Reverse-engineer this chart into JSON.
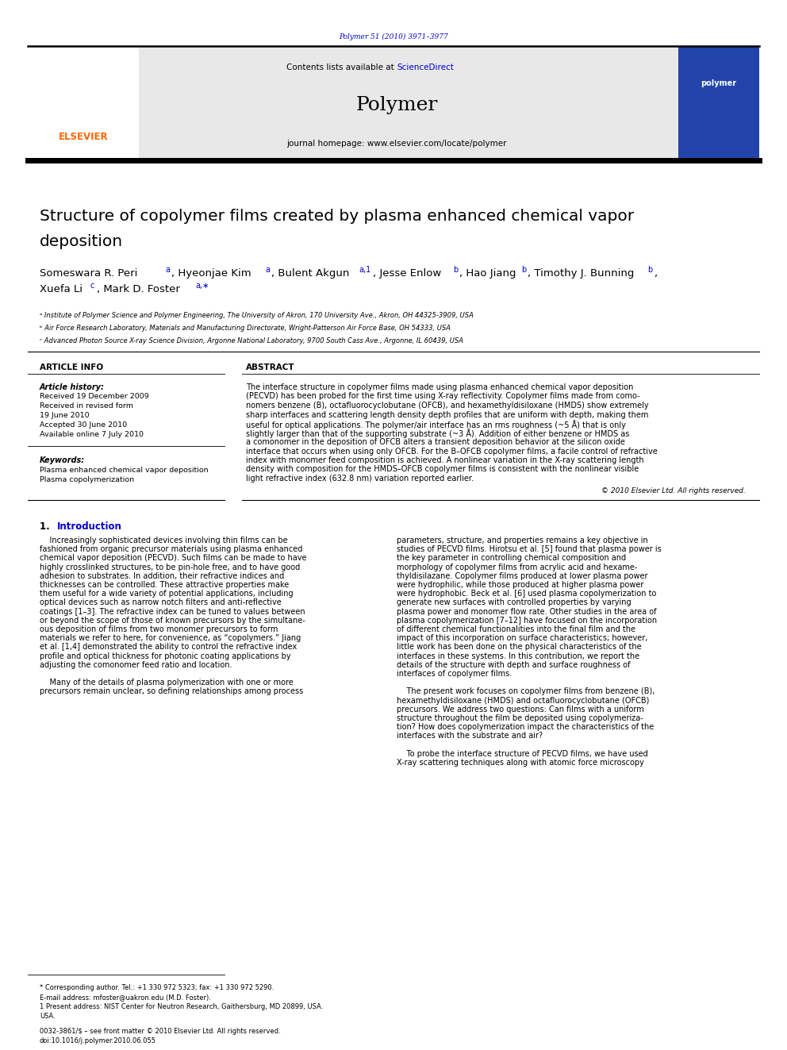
{
  "page_width": 9.92,
  "page_height": 13.23,
  "bg_color": "#ffffff",
  "top_citation": "Polymer 51 (2010) 3971–3977",
  "citation_color": "#0000cc",
  "header_bg": "#e8e8e8",
  "header_text1": "Contents lists available at ",
  "header_sciencedirect": "ScienceDirect",
  "header_link_color": "#0000cc",
  "journal_name": "Polymer",
  "journal_homepage": "journal homepage: www.elsevier.com/locate/polymer",
  "elsevier_color": "#ff6600",
  "elsevier_text": "ELSEVIER",
  "article_info_header": "ARTICLE INFO",
  "abstract_header": "ABSTRACT",
  "article_history_label": "Article history:",
  "received1": "Received 19 December 2009",
  "received2": "Received in revised form",
  "received2b": "19 June 2010",
  "accepted": "Accepted 30 June 2010",
  "available": "Available online 7 July 2010",
  "keywords_label": "Keywords:",
  "keyword1": "Plasma enhanced chemical vapor deposition",
  "keyword2": "Plasma copolymerization",
  "copyright": "© 2010 Elsevier Ltd. All rights reserved.",
  "affil_a": "ᵃ Institute of Polymer Science and Polymer Engineering, The University of Akron, 170 University Ave., Akron, OH 44325-3909, USA",
  "affil_b": "ᵇ Air Force Research Laboratory, Materials and Manufacturing Directorate, Wright-Patterson Air Force Base, OH 54333, USA",
  "affil_c": "ᶜ Advanced Photon Source X-ray Science Division, Argonne National Laboratory, 9700 South Cass Ave., Argonne, IL 60439, USA",
  "footnote1": "* Corresponding author. Tel.: +1 330 972 5323; fax: +1 330 972 5290.",
  "footnote2": "E-mail address: mfoster@uakron.edu (M.D. Foster).",
  "footnote3": "1 Present address: NIST Center for Neutron Research, Gaithersburg, MD 20899, USA.",
  "footnote4": "USA.",
  "footer1": "0032-3861/$ – see front matter © 2010 Elsevier Ltd. All rights reserved.",
  "footer2": "doi:10.1016/j.polymer.2010.06.055"
}
